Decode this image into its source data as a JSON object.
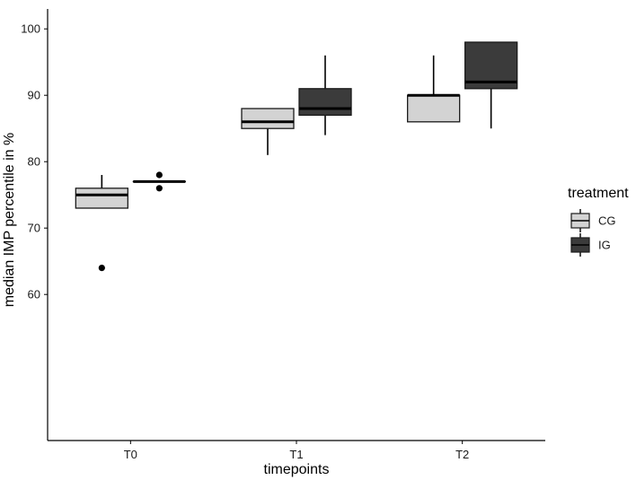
{
  "chart_data": {
    "type": "box",
    "title": "",
    "xlabel": "timepoints",
    "ylabel": "median IMP percentile in %",
    "categories": [
      "T0",
      "T1",
      "T2"
    ],
    "yticks": [
      60,
      70,
      80,
      90,
      100
    ],
    "ylim": [
      38,
      103
    ],
    "legend": {
      "title": "treatment",
      "position": "right",
      "entries": [
        "CG",
        "IG"
      ]
    },
    "series": [
      {
        "name": "CG",
        "color": "#d3d3d3",
        "boxes": [
          {
            "category": "T0",
            "whisker_low": 73,
            "q1": 73,
            "median": 75,
            "q3": 76,
            "whisker_high": 78,
            "outliers": [
              64
            ]
          },
          {
            "category": "T1",
            "whisker_low": 81,
            "q1": 85,
            "median": 86,
            "q3": 88,
            "whisker_high": 88,
            "outliers": []
          },
          {
            "category": "T2",
            "whisker_low": 86,
            "q1": 86,
            "median": 90,
            "q3": 90,
            "whisker_high": 96,
            "outliers": []
          }
        ]
      },
      {
        "name": "IG",
        "color": "#3b3b3b",
        "boxes": [
          {
            "category": "T0",
            "whisker_low": 77,
            "q1": 77,
            "median": 77,
            "q3": 77,
            "whisker_high": 77,
            "outliers": [
              76,
              78
            ]
          },
          {
            "category": "T1",
            "whisker_low": 84,
            "q1": 87,
            "median": 88,
            "q3": 91,
            "whisker_high": 96,
            "outliers": []
          },
          {
            "category": "T2",
            "whisker_low": 85,
            "q1": 91,
            "median": 92,
            "q3": 98,
            "whisker_high": 98,
            "outliers": []
          }
        ]
      }
    ]
  }
}
